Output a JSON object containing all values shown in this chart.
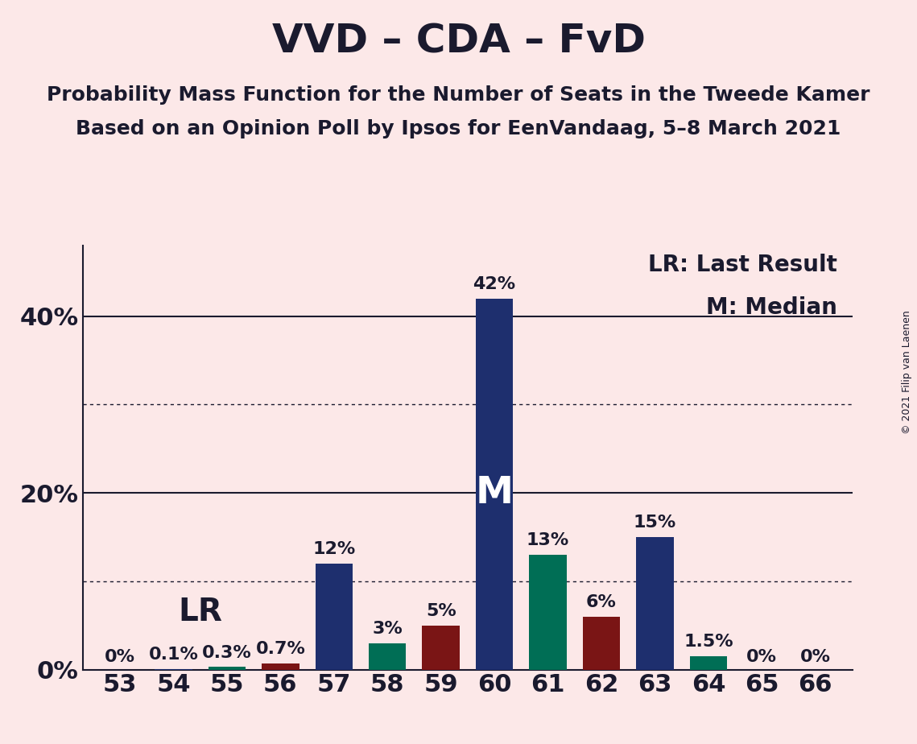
{
  "title": "VVD – CDA – FvD",
  "subtitle1": "Probability Mass Function for the Number of Seats in the Tweede Kamer",
  "subtitle2": "Based on an Opinion Poll by Ipsos for EenVandaag, 5–8 March 2021",
  "copyright": "© 2021 Filip van Laenen",
  "legend_lr": "LR: Last Result",
  "legend_m": "M: Median",
  "seats": [
    53,
    54,
    55,
    56,
    57,
    58,
    59,
    60,
    61,
    62,
    63,
    64,
    65,
    66
  ],
  "pmf_values": [
    0.0,
    0.1,
    0.3,
    0.7,
    12.0,
    3.0,
    5.0,
    42.0,
    13.0,
    6.0,
    15.0,
    1.5,
    0.0,
    0.0
  ],
  "bar_colors": [
    "#1e2f6e",
    "#1e2f6e",
    "#006e55",
    "#7a1515",
    "#1e2f6e",
    "#006e55",
    "#7a1515",
    "#1e2f6e",
    "#006e55",
    "#7a1515",
    "#1e2f6e",
    "#006e55",
    "#1e2f6e",
    "#1e2f6e"
  ],
  "labels": [
    "0%",
    "0.1%",
    "0.3%",
    "0.7%",
    "12%",
    "3%",
    "5%",
    "42%",
    "13%",
    "6%",
    "15%",
    "1.5%",
    "0%",
    "0%"
  ],
  "median_seat": 60,
  "lr_seat": 54,
  "ylim": [
    0,
    48
  ],
  "dotted_lines": [
    10,
    30
  ],
  "solid_lines": [
    20,
    40
  ],
  "background_color": "#fce8e8",
  "bar_width": 0.7,
  "title_fontsize": 36,
  "subtitle_fontsize": 18,
  "axis_tick_fontsize": 22,
  "bar_label_fontsize": 16,
  "legend_fontsize": 20,
  "lr_label_fontsize": 28,
  "m_label_fontsize": 34,
  "copyright_fontsize": 9,
  "ytick_positions": [
    0,
    20,
    40
  ],
  "ytick_labels": [
    "0%",
    "20%",
    "40%"
  ]
}
